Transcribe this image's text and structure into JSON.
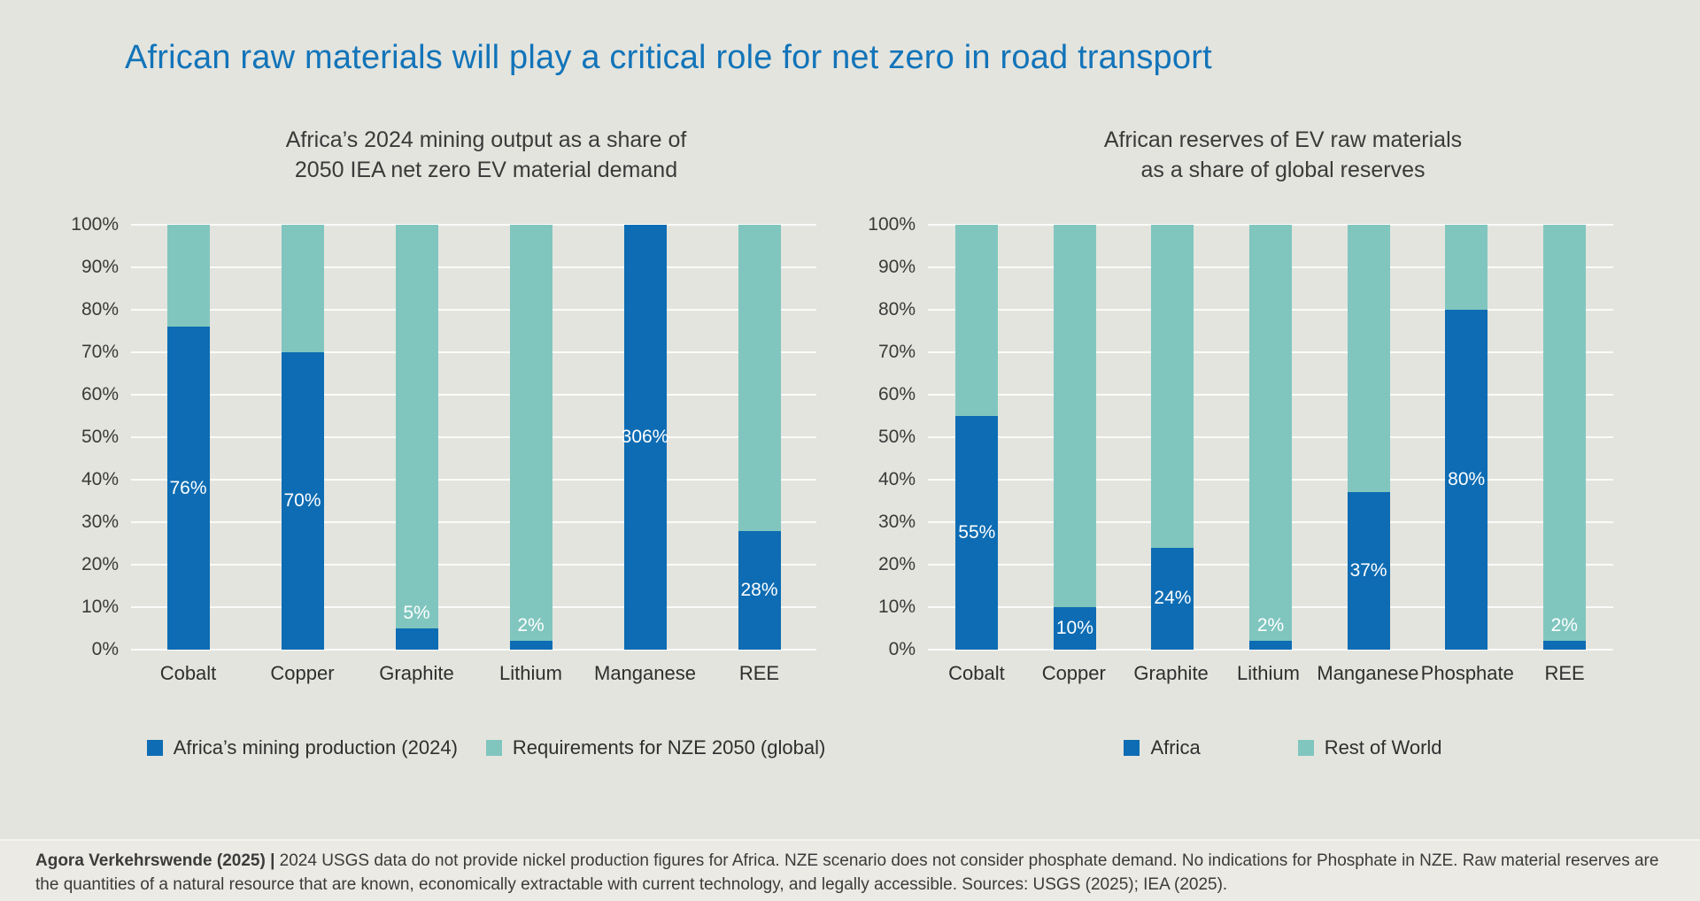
{
  "page": {
    "title": "African raw materials will play a critical role for net zero in road transport"
  },
  "colors": {
    "africa_blue": "#0d6cb3",
    "rest_teal": "#80c6bf",
    "title_blue": "#1274b9",
    "background": "#e3e4de",
    "footer_bg": "#ebeae5"
  },
  "footer": {
    "bold": "Agora Verkehrswende (2025) |",
    "text": " 2024 USGS data do not provide nickel production figures for Africa. NZE scenario does not consider phosphate demand. No indications for Phosphate in NZE. Raw material reserves are the quantities of a natural resource that are known, economically extractable with current technology, and legally accessible. Sources: USGS (2025); IEA (2025)."
  },
  "chart_data": [
    {
      "type": "bar",
      "variant": "stacked-100",
      "title": "Africa’s 2024 mining output as a share of\n2050 IEA net zero EV material demand",
      "categories": [
        "Cobalt",
        "Copper",
        "Graphite",
        "Lithium",
        "Manganese",
        "REE"
      ],
      "series": [
        {
          "name": "Africa’s mining production (2024)",
          "color_key": "africa_blue",
          "values": [
            76,
            70,
            5,
            2,
            306,
            28
          ],
          "data_labels": [
            "76%",
            "70%",
            "5%",
            "2%",
            "306%",
            "28%"
          ]
        },
        {
          "name": "Requirements for NZE 2050 (global)",
          "color_key": "rest_teal",
          "values": [
            24,
            30,
            95,
            98,
            0,
            72
          ]
        }
      ],
      "ylim": [
        0,
        100
      ],
      "yticks": [
        "0%",
        "10%",
        "20%",
        "30%",
        "40%",
        "50%",
        "60%",
        "70%",
        "80%",
        "90%",
        "100%"
      ],
      "grid": true,
      "legend_position": "bottom"
    },
    {
      "type": "bar",
      "variant": "stacked-100",
      "title": "African reserves of EV raw materials\nas a share of global reserves",
      "categories": [
        "Cobalt",
        "Copper",
        "Graphite",
        "Lithium",
        "Manganese",
        "Phosphate",
        "REE"
      ],
      "series": [
        {
          "name": "Africa",
          "color_key": "africa_blue",
          "values": [
            55,
            10,
            24,
            2,
            37,
            80,
            2
          ],
          "data_labels": [
            "55%",
            "10%",
            "24%",
            "2%",
            "37%",
            "80%",
            "2%"
          ]
        },
        {
          "name": "Rest of World",
          "color_key": "rest_teal",
          "values": [
            45,
            90,
            76,
            98,
            63,
            20,
            98
          ]
        }
      ],
      "ylim": [
        0,
        100
      ],
      "yticks": [
        "0%",
        "10%",
        "20%",
        "30%",
        "40%",
        "50%",
        "60%",
        "70%",
        "80%",
        "90%",
        "100%"
      ],
      "grid": true,
      "legend_position": "bottom"
    }
  ]
}
